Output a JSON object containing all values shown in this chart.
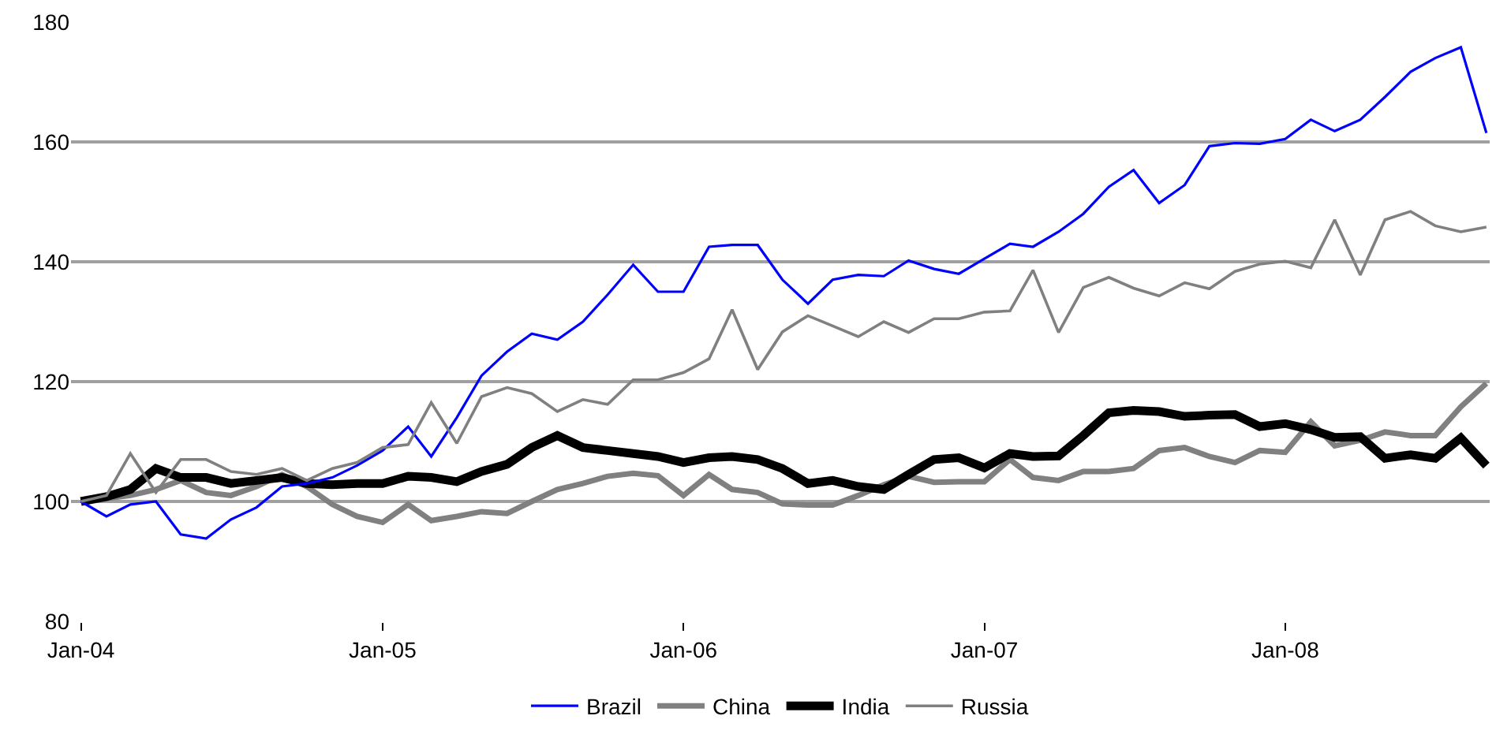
{
  "chart_data": {
    "type": "line",
    "x": [
      "2004-01",
      "2004-02",
      "2004-03",
      "2004-04",
      "2004-05",
      "2004-06",
      "2004-07",
      "2004-08",
      "2004-09",
      "2004-10",
      "2004-11",
      "2004-12",
      "2005-01",
      "2005-02",
      "2005-03",
      "2005-04",
      "2005-05",
      "2005-06",
      "2005-07",
      "2005-08",
      "2005-09",
      "2005-10",
      "2005-11",
      "2005-12",
      "2006-01",
      "2006-02",
      "2006-03",
      "2006-04",
      "2006-05",
      "2006-06",
      "2006-07",
      "2006-08",
      "2006-09",
      "2006-10",
      "2006-11",
      "2006-12",
      "2007-01",
      "2007-02",
      "2007-03",
      "2007-04",
      "2007-05",
      "2007-06",
      "2007-07",
      "2007-08",
      "2007-09",
      "2007-10",
      "2007-11",
      "2007-12",
      "2008-01",
      "2008-02",
      "2008-03",
      "2008-04",
      "2008-05",
      "2008-06",
      "2008-07",
      "2008-08",
      "2008-09"
    ],
    "series": [
      {
        "name": "Brazil",
        "color": "#0000ff",
        "values": [
          100,
          97.5,
          99.5,
          100,
          94.5,
          93.8,
          97,
          99,
          102.5,
          103,
          104,
          106,
          108.5,
          112.5,
          107.5,
          114,
          121,
          125,
          128,
          127,
          130,
          134.5,
          139.5,
          135,
          135,
          142.5,
          142.8,
          142.8,
          137,
          133,
          137,
          137.8,
          137.6,
          140.2,
          138.8,
          138,
          140.5,
          143,
          142.5,
          145,
          148,
          152.5,
          155.3,
          149.8,
          152.8,
          159.3,
          159.8,
          159.7,
          160.5,
          163.7,
          161.8,
          163.7,
          167.5,
          171.7,
          174,
          175.8,
          161.5
        ]
      },
      {
        "name": "China",
        "color": "#808080",
        "values": [
          100,
          100.5,
          101,
          102,
          103.5,
          101.5,
          101,
          102.5,
          104.5,
          102.5,
          99.5,
          97.5,
          96.5,
          99.5,
          96.8,
          97.5,
          98.3,
          98,
          100,
          102,
          103,
          104.2,
          104.7,
          104.3,
          101,
          104.5,
          102,
          101.5,
          99.6,
          99.4,
          99.4,
          101,
          102.8,
          104.2,
          103.2,
          103.3,
          103.3,
          107,
          104,
          103.5,
          105,
          105,
          105.5,
          108.5,
          109,
          107.5,
          106.5,
          108.5,
          108.2,
          113.3,
          109.3,
          110.2,
          111.6,
          111,
          111,
          115.8,
          119.7
        ]
      },
      {
        "name": "India",
        "color": "#000000",
        "values": [
          100,
          100.8,
          102,
          105.5,
          104,
          104,
          103,
          103.5,
          104,
          103,
          102.8,
          103,
          103,
          104.2,
          104,
          103.3,
          105,
          106.2,
          109,
          111,
          109,
          108.5,
          108,
          107.5,
          106.5,
          107.3,
          107.5,
          107,
          105.5,
          103,
          103.5,
          102.5,
          102,
          104.5,
          107,
          107.3,
          105.6,
          108,
          107.5,
          107.6,
          111,
          114.8,
          115.2,
          115,
          114.2,
          114.4,
          114.5,
          112.5,
          113,
          112,
          110.7,
          110.8,
          107.2,
          107.8,
          107.2,
          110.6,
          106
        ]
      },
      {
        "name": "Russia",
        "color": "#808080",
        "values": [
          100,
          101,
          108,
          101.5,
          107,
          107,
          105,
          104.5,
          105.5,
          103.5,
          105.5,
          106.5,
          109,
          109.5,
          116.5,
          109.7,
          117.5,
          119,
          118,
          115,
          117,
          116.2,
          120.3,
          120.3,
          121.5,
          123.8,
          132,
          122,
          128.3,
          131,
          129.3,
          127.5,
          130,
          128.2,
          130.5,
          130.5,
          131.6,
          131.8,
          138.6,
          128.2,
          135.7,
          137.4,
          135.6,
          134.3,
          136.5,
          135.5,
          138.4,
          139.6,
          140.1,
          139,
          147,
          137.8,
          147,
          148.4,
          146,
          145,
          145.8
        ]
      }
    ],
    "xlim": [
      "2003-12-20",
      "2008-09-05"
    ],
    "xticks": [
      {
        "value": "2004-01",
        "label": "Jan-04"
      },
      {
        "value": "2005-01",
        "label": "Jan-05"
      },
      {
        "value": "2006-01",
        "label": "Jan-06"
      },
      {
        "value": "2007-01",
        "label": "Jan-07"
      },
      {
        "value": "2008-01",
        "label": "Jan-08"
      }
    ],
    "ylim": [
      80,
      180
    ],
    "yticks": [
      80,
      100,
      120,
      140,
      160,
      180
    ],
    "grid": "y",
    "legend": "bottom",
    "marker": "none",
    "line_style": "solid"
  }
}
